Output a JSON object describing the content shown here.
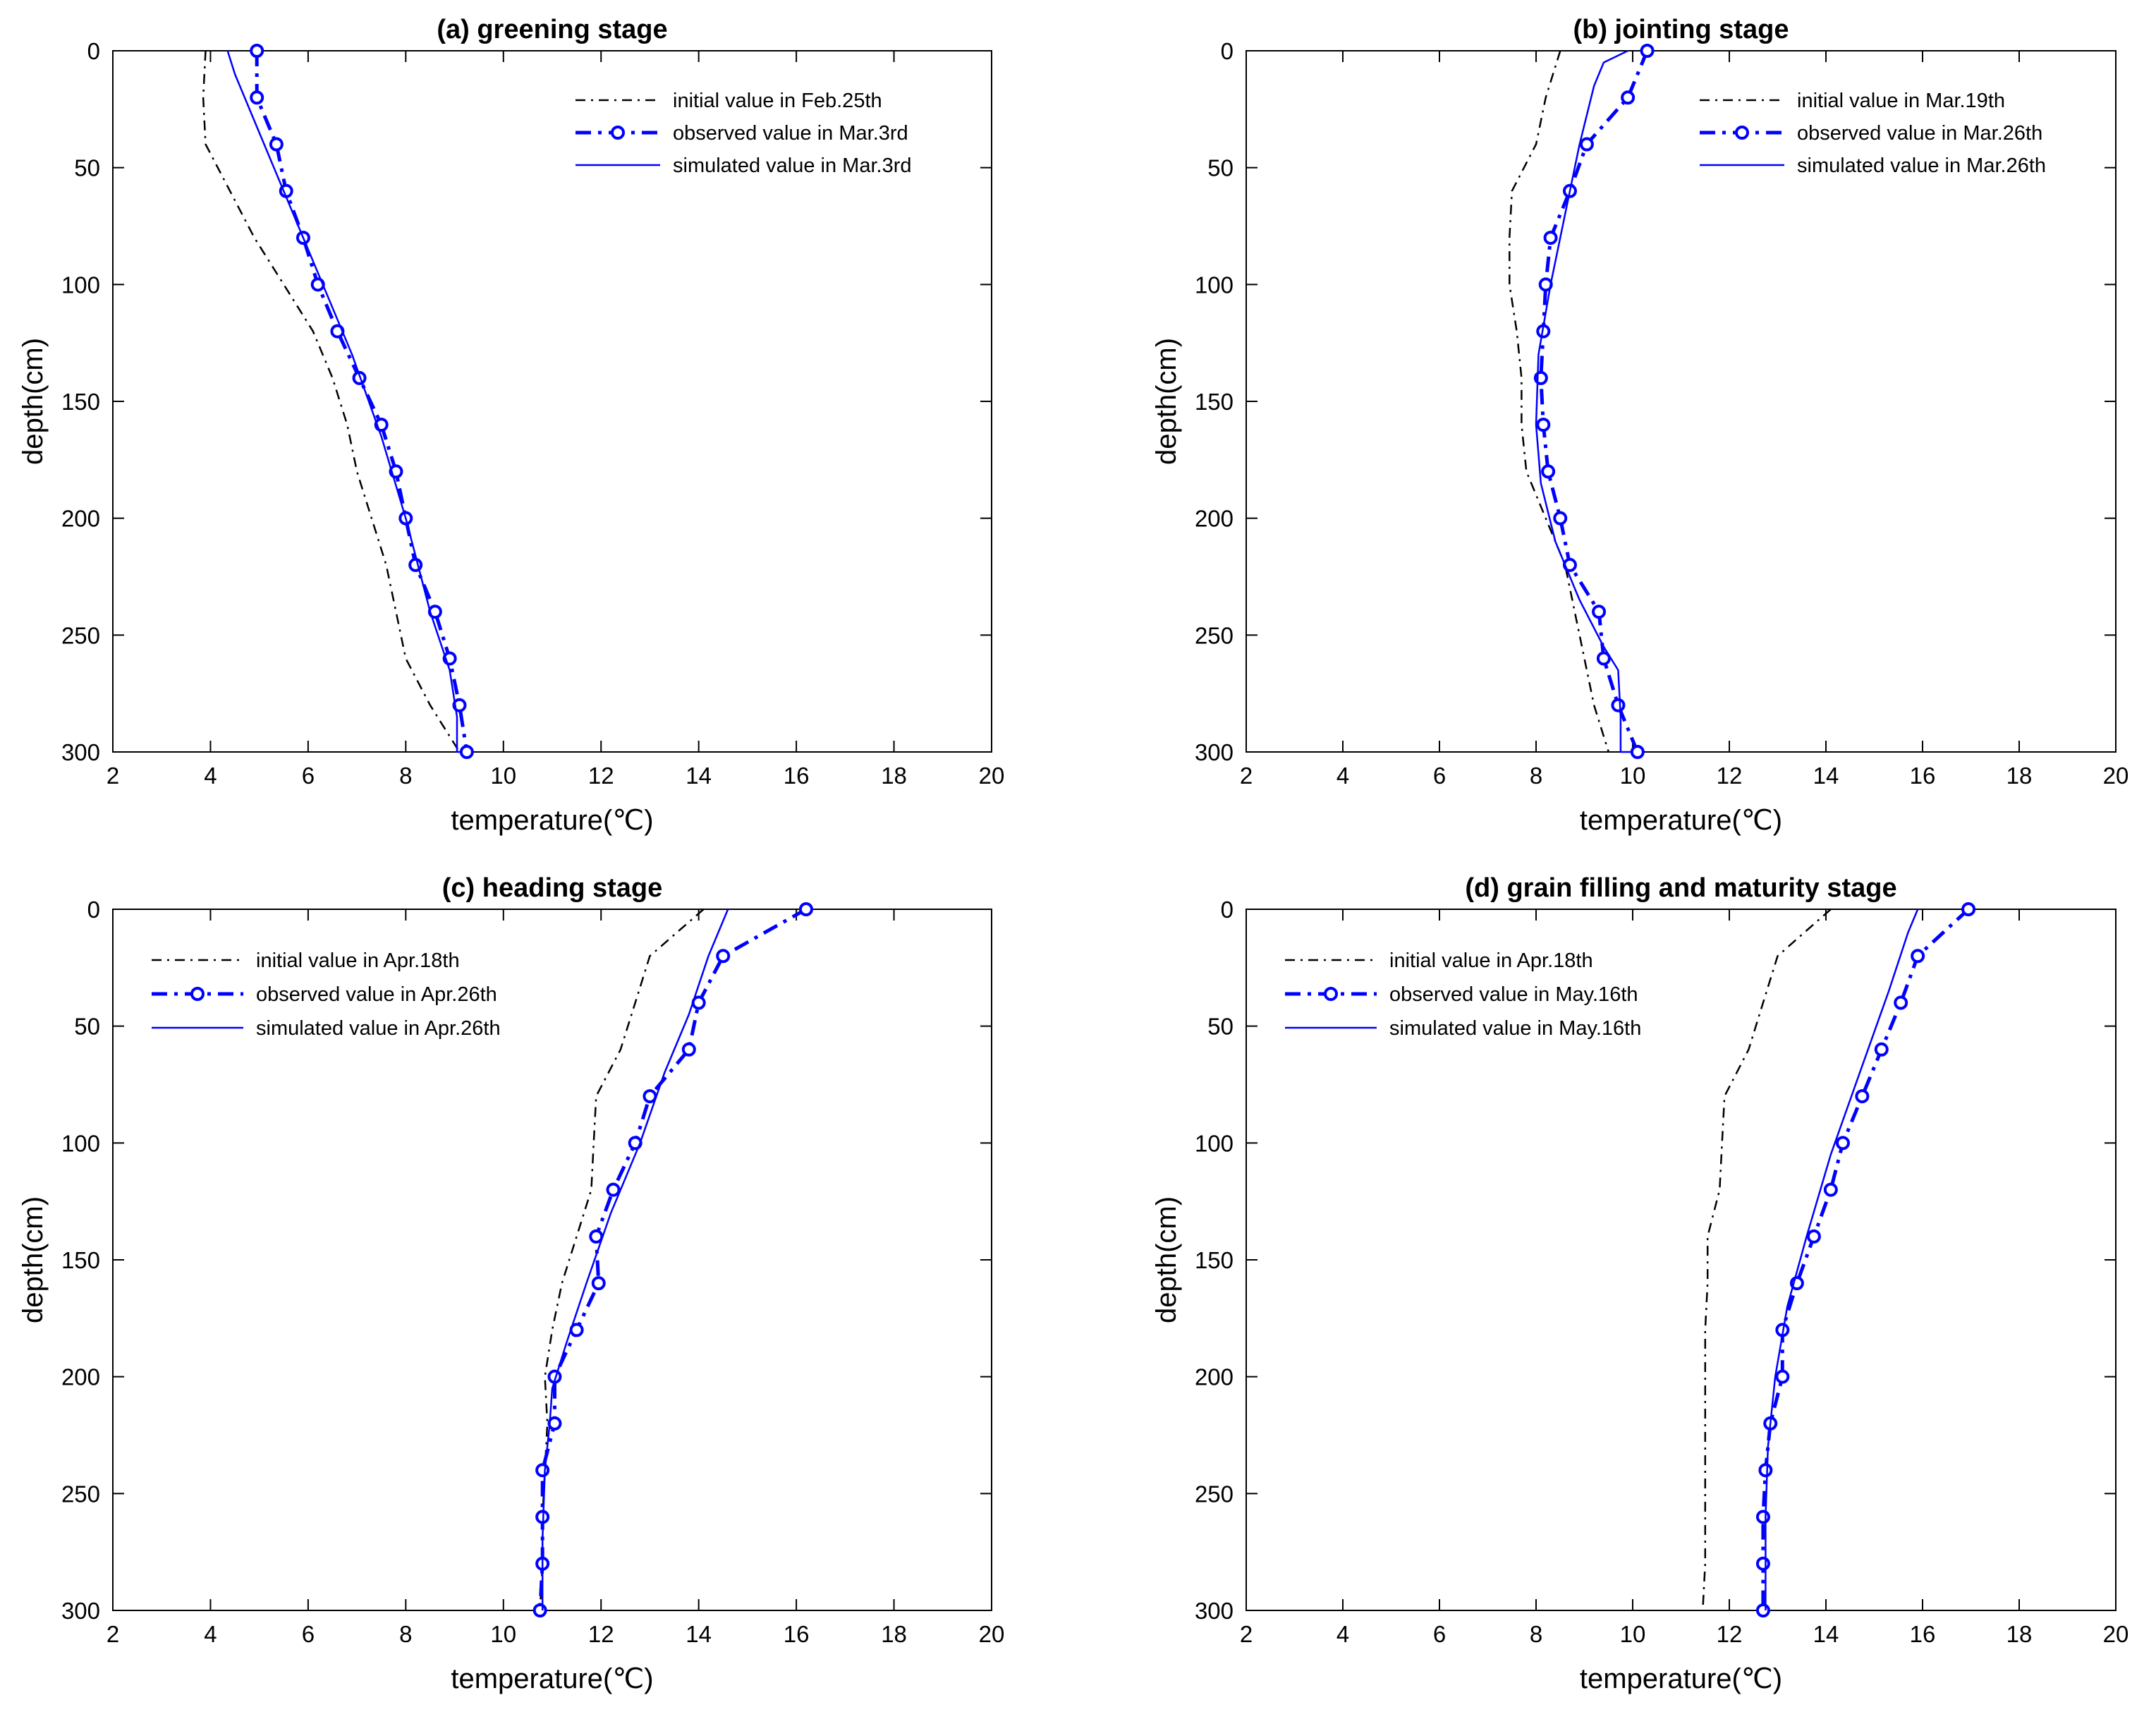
{
  "figure": {
    "colors": {
      "initial": "#000000",
      "observed": "#0000ff",
      "simulated": "#0000ff",
      "axes": "#000000"
    }
  },
  "chart_data": [
    {
      "type": "line",
      "title": "(a) greening stage",
      "xlabel": "temperature(℃)",
      "ylabel": "depth(cm)",
      "xlim": [
        2,
        20
      ],
      "ylim": [
        0,
        300
      ],
      "y_reversed": true,
      "xticks": [
        2,
        4,
        6,
        8,
        10,
        12,
        14,
        16,
        18,
        20
      ],
      "yticks": [
        0,
        50,
        100,
        150,
        200,
        250,
        300
      ],
      "legend_position": "top-right",
      "series": [
        {
          "name": "initial value in Feb.25th",
          "style": "dash-dot",
          "color": "#000000",
          "points": [
            [
              3.9,
              0
            ],
            [
              3.85,
              20
            ],
            [
              3.9,
              40
            ],
            [
              4.4,
              60
            ],
            [
              4.9,
              80
            ],
            [
              5.5,
              100
            ],
            [
              6.1,
              120
            ],
            [
              6.5,
              140
            ],
            [
              6.8,
              160
            ],
            [
              7.0,
              180
            ],
            [
              7.3,
              200
            ],
            [
              7.6,
              220
            ],
            [
              7.8,
              240
            ],
            [
              8.0,
              260
            ],
            [
              8.5,
              280
            ],
            [
              9.1,
              300
            ]
          ]
        },
        {
          "name": "observed value in Mar.3rd",
          "style": "dash-dot-marker",
          "color": "#0000ff",
          "points": [
            [
              4.95,
              0
            ],
            [
              4.95,
              20
            ],
            [
              5.35,
              40
            ],
            [
              5.55,
              60
            ],
            [
              5.9,
              80
            ],
            [
              6.2,
              100
            ],
            [
              6.6,
              120
            ],
            [
              7.05,
              140
            ],
            [
              7.5,
              160
            ],
            [
              7.8,
              180
            ],
            [
              8.0,
              200
            ],
            [
              8.2,
              220
            ],
            [
              8.6,
              240
            ],
            [
              8.9,
              260
            ],
            [
              9.1,
              280
            ],
            [
              9.25,
              300
            ]
          ]
        },
        {
          "name": "simulated value in Mar.3rd",
          "style": "solid",
          "color": "#0000ff",
          "points": [
            [
              4.35,
              0
            ],
            [
              4.5,
              10
            ],
            [
              4.9,
              30
            ],
            [
              5.3,
              50
            ],
            [
              5.8,
              75
            ],
            [
              6.3,
              100
            ],
            [
              6.9,
              130
            ],
            [
              7.5,
              165
            ],
            [
              8.0,
              200
            ],
            [
              8.5,
              240
            ],
            [
              8.9,
              265
            ],
            [
              9.05,
              285
            ],
            [
              9.05,
              300
            ],
            [
              9.1,
              300
            ]
          ]
        }
      ]
    },
    {
      "type": "line",
      "title": "(b) jointing stage",
      "xlabel": "temperature(℃)",
      "ylabel": "depth(cm)",
      "xlim": [
        2,
        20
      ],
      "ylim": [
        0,
        300
      ],
      "y_reversed": true,
      "xticks": [
        2,
        4,
        6,
        8,
        10,
        12,
        14,
        16,
        18,
        20
      ],
      "yticks": [
        0,
        50,
        100,
        150,
        200,
        250,
        300
      ],
      "legend_position": "top-right",
      "series": [
        {
          "name": "initial value in Mar.19th",
          "style": "dash-dot",
          "color": "#000000",
          "points": [
            [
              8.5,
              0
            ],
            [
              8.2,
              20
            ],
            [
              8.0,
              40
            ],
            [
              7.5,
              60
            ],
            [
              7.45,
              80
            ],
            [
              7.45,
              100
            ],
            [
              7.6,
              120
            ],
            [
              7.7,
              140
            ],
            [
              7.7,
              160
            ],
            [
              7.8,
              180
            ],
            [
              8.2,
              200
            ],
            [
              8.6,
              220
            ],
            [
              8.8,
              240
            ],
            [
              9.0,
              260
            ],
            [
              9.2,
              280
            ],
            [
              9.5,
              300
            ]
          ]
        },
        {
          "name": "observed value in Mar.26th",
          "style": "dash-dot-marker",
          "color": "#0000ff",
          "points": [
            [
              10.3,
              0
            ],
            [
              9.9,
              20
            ],
            [
              9.05,
              40
            ],
            [
              8.7,
              60
            ],
            [
              8.3,
              80
            ],
            [
              8.2,
              100
            ],
            [
              8.15,
              120
            ],
            [
              8.1,
              140
            ],
            [
              8.15,
              160
            ],
            [
              8.25,
              180
            ],
            [
              8.5,
              200
            ],
            [
              8.7,
              220
            ],
            [
              9.3,
              240
            ],
            [
              9.4,
              260
            ],
            [
              9.7,
              280
            ],
            [
              10.1,
              300
            ]
          ]
        },
        {
          "name": "simulated value in Mar.26th",
          "style": "solid",
          "color": "#0000ff",
          "points": [
            [
              9.9,
              0
            ],
            [
              9.4,
              5
            ],
            [
              9.2,
              15
            ],
            [
              8.9,
              40
            ],
            [
              8.6,
              70
            ],
            [
              8.3,
              100
            ],
            [
              8.05,
              130
            ],
            [
              8.0,
              160
            ],
            [
              8.1,
              185
            ],
            [
              8.4,
              210
            ],
            [
              8.9,
              235
            ],
            [
              9.4,
              255
            ],
            [
              9.7,
              265
            ],
            [
              9.75,
              285
            ],
            [
              9.75,
              300
            ],
            [
              10.0,
              300
            ]
          ]
        }
      ]
    },
    {
      "type": "line",
      "title": "(c) heading stage",
      "xlabel": "temperature(℃)",
      "ylabel": "depth(cm)",
      "xlim": [
        2,
        20
      ],
      "ylim": [
        0,
        300
      ],
      "y_reversed": true,
      "xticks": [
        2,
        4,
        6,
        8,
        10,
        12,
        14,
        16,
        18,
        20
      ],
      "yticks": [
        0,
        50,
        100,
        150,
        200,
        250,
        300
      ],
      "legend_position": "top-left",
      "series": [
        {
          "name": "initial value in Apr.18th",
          "style": "dash-dot",
          "color": "#000000",
          "points": [
            [
              14.1,
              0
            ],
            [
              13.0,
              20
            ],
            [
              12.7,
              40
            ],
            [
              12.4,
              60
            ],
            [
              11.9,
              80
            ],
            [
              11.85,
              100
            ],
            [
              11.8,
              120
            ],
            [
              11.5,
              140
            ],
            [
              11.2,
              160
            ],
            [
              11.0,
              180
            ],
            [
              10.85,
              200
            ],
            [
              10.9,
              220
            ],
            [
              10.85,
              240
            ],
            [
              10.8,
              260
            ],
            [
              10.8,
              280
            ],
            [
              10.75,
              300
            ]
          ]
        },
        {
          "name": "observed value in Apr.26th",
          "style": "dash-dot-marker",
          "color": "#0000ff",
          "points": [
            [
              16.2,
              0
            ],
            [
              14.5,
              20
            ],
            [
              14.0,
              40
            ],
            [
              13.8,
              60
            ],
            [
              13.0,
              80
            ],
            [
              12.7,
              100
            ],
            [
              12.25,
              120
            ],
            [
              11.9,
              140
            ],
            [
              11.95,
              160
            ],
            [
              11.5,
              180
            ],
            [
              11.05,
              200
            ],
            [
              11.05,
              220
            ],
            [
              10.8,
              240
            ],
            [
              10.8,
              260
            ],
            [
              10.8,
              280
            ],
            [
              10.75,
              300
            ]
          ]
        },
        {
          "name": "simulated value in Apr.26th",
          "style": "solid",
          "color": "#0000ff",
          "points": [
            [
              14.6,
              0
            ],
            [
              14.2,
              20
            ],
            [
              13.8,
              45
            ],
            [
              13.3,
              70
            ],
            [
              12.8,
              100
            ],
            [
              12.2,
              130
            ],
            [
              11.7,
              160
            ],
            [
              11.3,
              185
            ],
            [
              11.0,
              205
            ],
            [
              10.95,
              220
            ],
            [
              10.85,
              240
            ],
            [
              10.8,
              270
            ],
            [
              10.8,
              300
            ]
          ]
        }
      ]
    },
    {
      "type": "line",
      "title": "(d) grain filling and maturity stage",
      "xlabel": "temperature(℃)",
      "ylabel": "depth(cm)",
      "xlim": [
        2,
        20
      ],
      "ylim": [
        0,
        300
      ],
      "y_reversed": true,
      "xticks": [
        2,
        4,
        6,
        8,
        10,
        12,
        14,
        16,
        18,
        20
      ],
      "yticks": [
        0,
        50,
        100,
        150,
        200,
        250,
        300
      ],
      "legend_position": "top-left",
      "series": [
        {
          "name": "initial value in Apr.18th",
          "style": "dash-dot",
          "color": "#000000",
          "points": [
            [
              14.1,
              0
            ],
            [
              13.0,
              20
            ],
            [
              12.7,
              40
            ],
            [
              12.4,
              60
            ],
            [
              11.9,
              80
            ],
            [
              11.85,
              100
            ],
            [
              11.8,
              120
            ],
            [
              11.55,
              140
            ],
            [
              11.55,
              160
            ],
            [
              11.5,
              180
            ],
            [
              11.5,
              200
            ],
            [
              11.5,
              220
            ],
            [
              11.5,
              240
            ],
            [
              11.5,
              260
            ],
            [
              11.5,
              280
            ],
            [
              11.45,
              300
            ]
          ]
        },
        {
          "name": "observed value in May.16th",
          "style": "dash-dot-marker",
          "color": "#0000ff",
          "points": [
            [
              16.95,
              0
            ],
            [
              15.9,
              20
            ],
            [
              15.55,
              40
            ],
            [
              15.15,
              60
            ],
            [
              14.75,
              80
            ],
            [
              14.35,
              100
            ],
            [
              14.1,
              120
            ],
            [
              13.75,
              140
            ],
            [
              13.4,
              160
            ],
            [
              13.1,
              180
            ],
            [
              13.1,
              200
            ],
            [
              12.85,
              220
            ],
            [
              12.75,
              240
            ],
            [
              12.7,
              260
            ],
            [
              12.7,
              280
            ],
            [
              12.7,
              300
            ]
          ]
        },
        {
          "name": "simulated value in May.16th",
          "style": "solid",
          "color": "#0000ff",
          "points": [
            [
              15.9,
              0
            ],
            [
              15.7,
              10
            ],
            [
              15.3,
              35
            ],
            [
              14.7,
              70
            ],
            [
              14.1,
              105
            ],
            [
              13.6,
              140
            ],
            [
              13.2,
              170
            ],
            [
              12.95,
              200
            ],
            [
              12.8,
              230
            ],
            [
              12.75,
              260
            ],
            [
              12.75,
              300
            ]
          ]
        }
      ]
    }
  ]
}
